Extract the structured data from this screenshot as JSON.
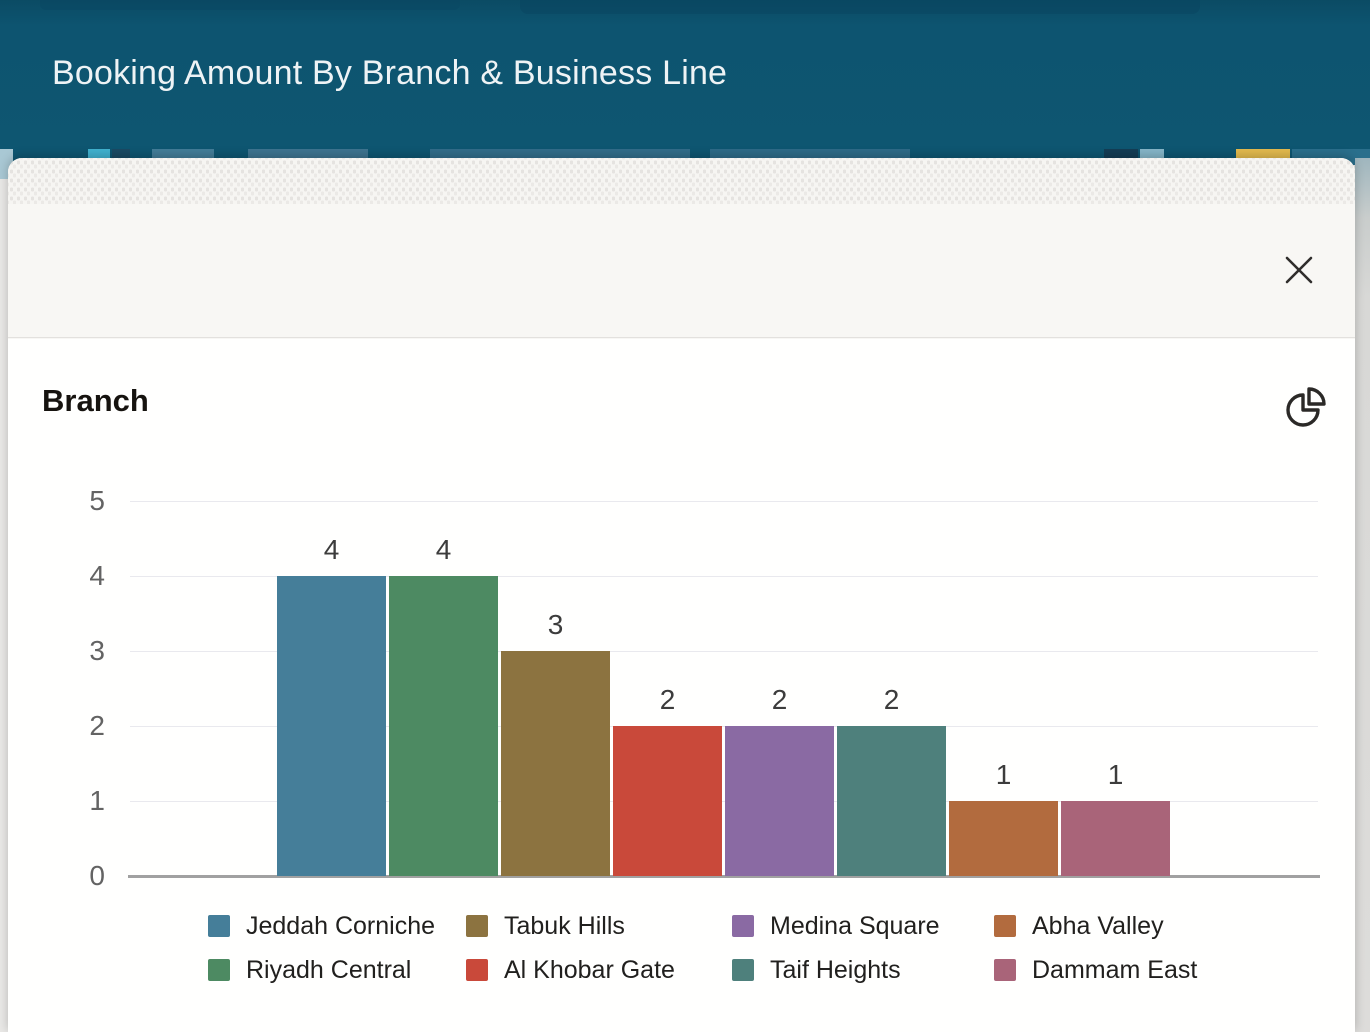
{
  "header": {
    "title": "Booking Amount By Branch & Business Line"
  },
  "dialog": {
    "close_icon": "close-x"
  },
  "widget": {
    "title": "Branch",
    "toggle_icon": "pie-chart"
  },
  "colors": {
    "header_bg": "#0d5470",
    "modal_bg": "#f8f7f4",
    "card_bg": "#fffffe",
    "axis_line": "#a1a1a1",
    "gridline": "#e9e9ee",
    "tick_text": "#636363",
    "value_label_text": "#3c3c3c",
    "legend_text": "#21201e"
  },
  "chart_data": {
    "type": "bar",
    "title": "Branch",
    "xlabel": "",
    "ylabel": "",
    "ylim": [
      0,
      5
    ],
    "yticks": [
      0,
      1,
      2,
      3,
      4,
      5
    ],
    "grid": true,
    "legend_position": "bottom",
    "categories": [
      "Jeddah Corniche",
      "Riyadh Central",
      "Tabuk Hills",
      "Al Khobar Gate",
      "Medina Square",
      "Taif Heights",
      "Abha Valley",
      "Dammam East"
    ],
    "series": [
      {
        "name": "Jeddah Corniche",
        "value": 4,
        "color": "#457e99"
      },
      {
        "name": "Riyadh Central",
        "value": 4,
        "color": "#4d8a62"
      },
      {
        "name": "Tabuk Hills",
        "value": 3,
        "color": "#8c7340"
      },
      {
        "name": "Al Khobar Gate",
        "value": 2,
        "color": "#c9493a"
      },
      {
        "name": "Medina Square",
        "value": 2,
        "color": "#8a6aa3"
      },
      {
        "name": "Taif Heights",
        "value": 2,
        "color": "#4e807c"
      },
      {
        "name": "Abha Valley",
        "value": 1,
        "color": "#b26b3e"
      },
      {
        "name": "Dammam East",
        "value": 1,
        "color": "#a96479"
      }
    ],
    "bar_value_labels": [
      "4",
      "4",
      "3",
      "2",
      "2",
      "2",
      "1",
      "1"
    ],
    "legend_order": [
      "Jeddah Corniche",
      "Tabuk Hills",
      "Medina Square",
      "Abha Valley",
      "Riyadh Central",
      "Al Khobar Gate",
      "Taif Heights",
      "Dammam East"
    ]
  }
}
